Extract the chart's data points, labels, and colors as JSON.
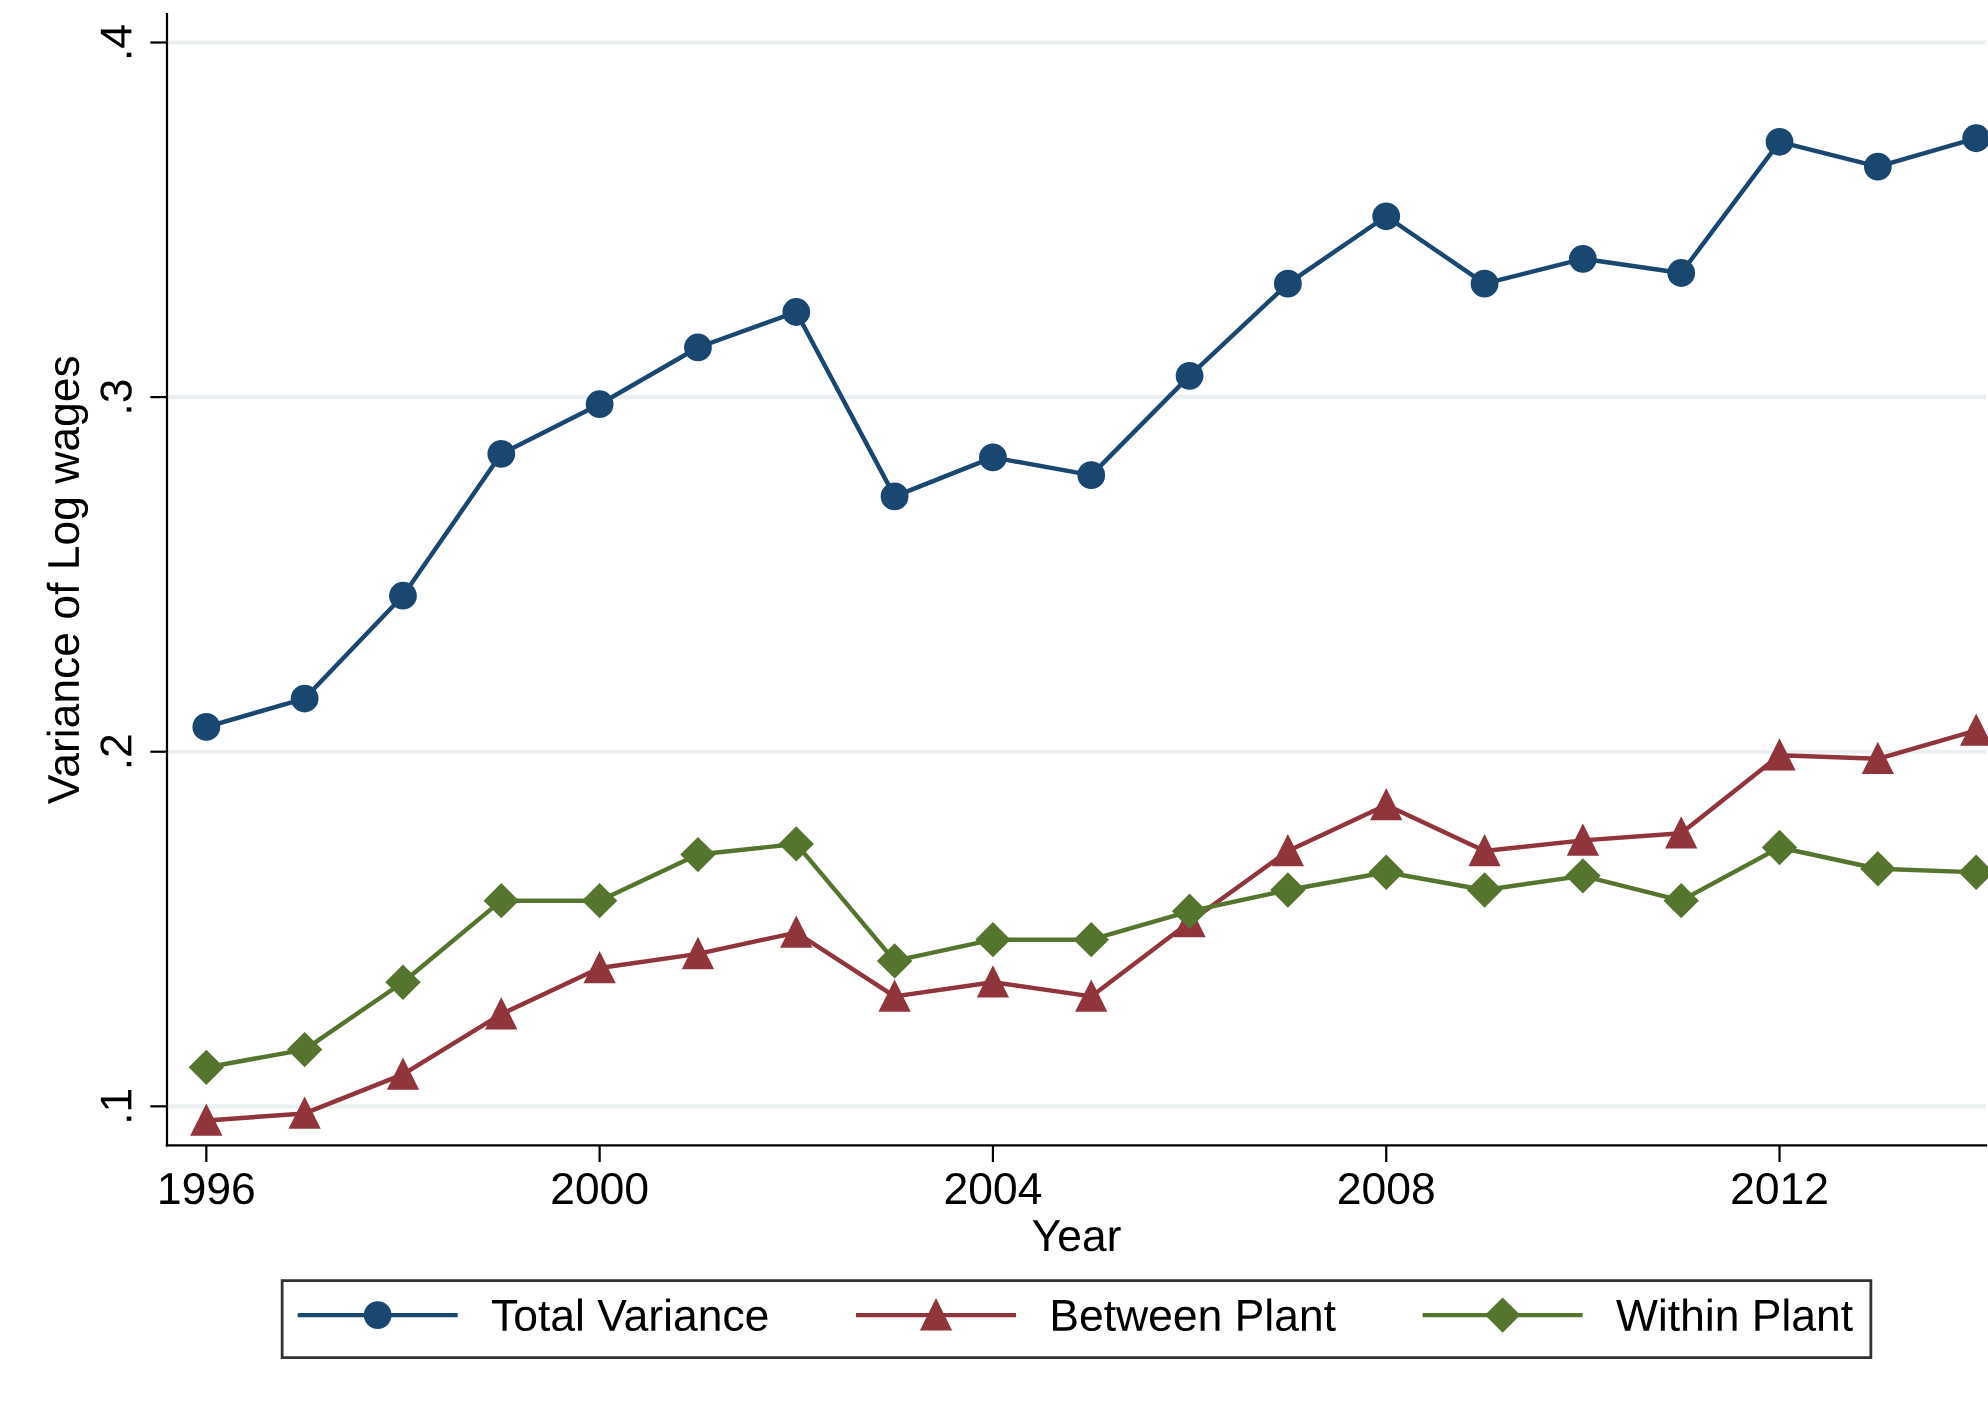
{
  "chart_data": {
    "type": "line",
    "xlabel": "Year",
    "ylabel": "Variance of Log wages",
    "x": [
      1996,
      1997,
      1998,
      1999,
      2000,
      2001,
      2002,
      2003,
      2004,
      2005,
      2006,
      2007,
      2008,
      2009,
      2010,
      2011,
      2012,
      2013,
      2014
    ],
    "series": [
      {
        "name": "Total Variance",
        "color": "#1a476f",
        "marker": "circle",
        "values": [
          0.207,
          0.215,
          0.244,
          0.284,
          0.298,
          0.314,
          0.324,
          0.272,
          0.283,
          0.278,
          0.306,
          0.332,
          0.351,
          0.332,
          0.339,
          0.335,
          0.372,
          0.365,
          0.373
        ]
      },
      {
        "name": "Between Plant",
        "color": "#90353b",
        "marker": "triangle",
        "values": [
          0.096,
          0.098,
          0.109,
          0.126,
          0.139,
          0.143,
          0.149,
          0.131,
          0.135,
          0.131,
          0.152,
          0.172,
          0.185,
          0.172,
          0.175,
          0.177,
          0.199,
          0.198,
          0.206
        ]
      },
      {
        "name": "Within Plant",
        "color": "#55752f",
        "marker": "diamond",
        "values": [
          0.111,
          0.116,
          0.135,
          0.158,
          0.158,
          0.171,
          0.174,
          0.141,
          0.147,
          0.147,
          0.155,
          0.161,
          0.166,
          0.161,
          0.165,
          0.158,
          0.173,
          0.167,
          0.166
        ]
      }
    ],
    "xlim": [
      1995.6,
      2014.1
    ],
    "ylim": [
      0.089,
      0.408
    ],
    "xticks": [
      1996,
      2000,
      2004,
      2008,
      2012
    ],
    "yticks": [
      {
        "value": 0.1,
        "label": ".1"
      },
      {
        "value": 0.2,
        "label": ".2"
      },
      {
        "value": 0.3,
        "label": ".3"
      },
      {
        "value": 0.4,
        "label": ".4"
      }
    ],
    "grid": "y",
    "legend": "bottom",
    "line_style": "solid"
  }
}
